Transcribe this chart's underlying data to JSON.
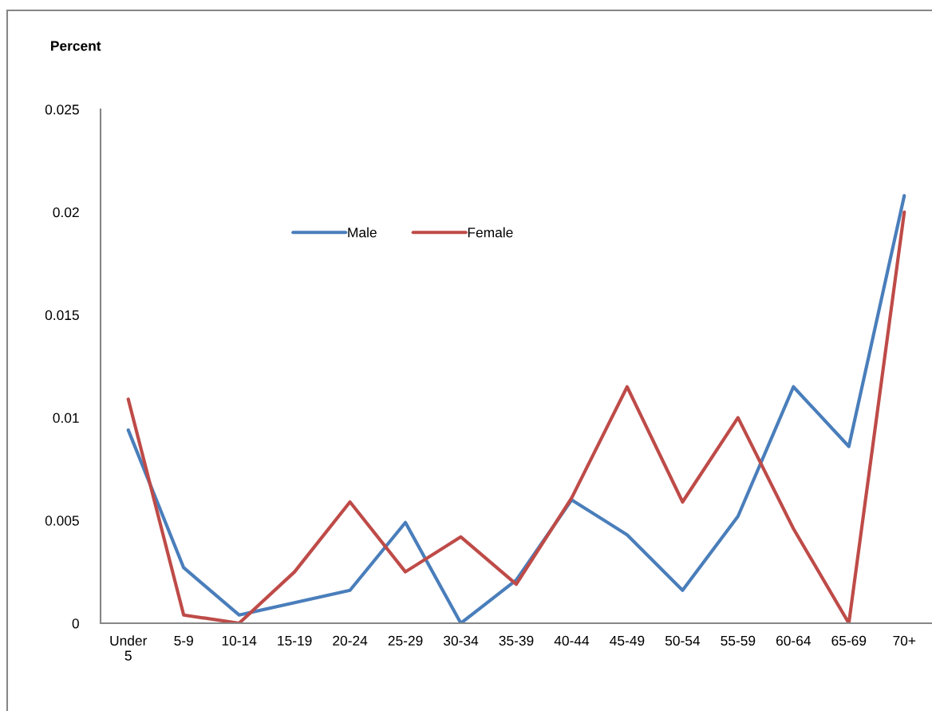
{
  "chart_data": {
    "type": "line",
    "ylabel": "Percent",
    "categories": [
      "Under 5",
      "5-9",
      "10-14",
      "15-19",
      "20-24",
      "25-29",
      "30-34",
      "35-39",
      "40-44",
      "45-49",
      "50-54",
      "55-59",
      "60-64",
      "65-69",
      "70+"
    ],
    "series": [
      {
        "name": "Male",
        "color": "#4a7ebb",
        "values": [
          0.0094,
          0.0027,
          0.0004,
          0.001,
          0.0016,
          0.0049,
          0.0,
          0.0021,
          0.006,
          0.0043,
          0.0016,
          0.0052,
          0.0115,
          0.0086,
          0.0208
        ]
      },
      {
        "name": "Female",
        "color": "#be4b48",
        "values": [
          0.0109,
          0.0004,
          0.0,
          0.0025,
          0.0059,
          0.0025,
          0.0042,
          0.0019,
          0.0061,
          0.0115,
          0.0059,
          0.01,
          0.0046,
          0.0,
          0.02
        ]
      }
    ],
    "ylim": [
      0,
      0.025
    ],
    "yticks": [
      0,
      0.005,
      0.01,
      0.015,
      0.02,
      0.025
    ],
    "legend": "top",
    "line_style": "solid"
  }
}
